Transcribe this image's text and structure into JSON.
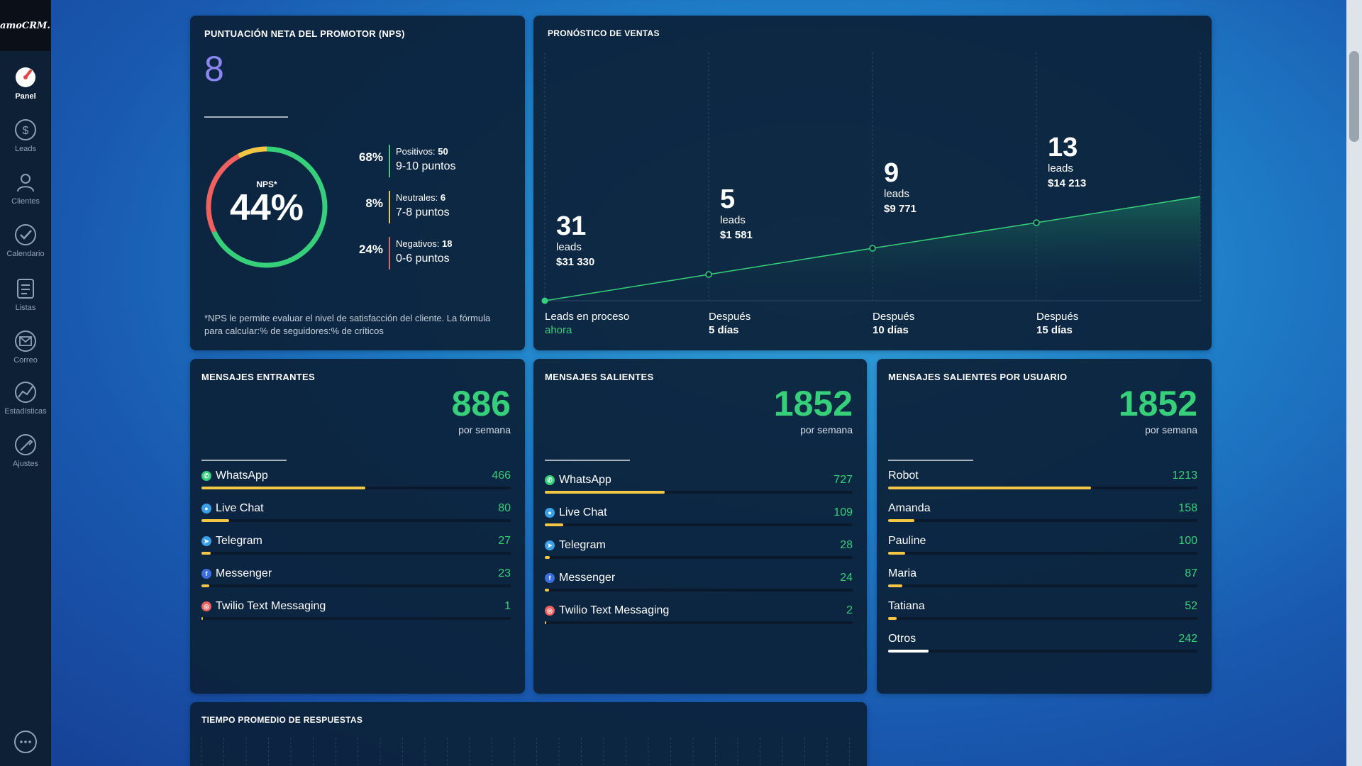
{
  "app": {
    "logo": "amoCRM."
  },
  "sidebar": {
    "items": [
      {
        "label": "Panel",
        "icon": "dashboard-icon",
        "active": true
      },
      {
        "label": "Leads",
        "icon": "dollar-icon"
      },
      {
        "label": "Clientes",
        "icon": "clients-icon"
      },
      {
        "label": "Calendario",
        "icon": "checkmark-icon"
      },
      {
        "label": "Listas",
        "icon": "list-icon"
      },
      {
        "label": "Correo",
        "icon": "mail-icon"
      },
      {
        "label": "Estadísticas",
        "icon": "stats-icon"
      },
      {
        "label": "Ajustes",
        "icon": "settings-icon"
      }
    ],
    "chat_icon": "chat-icon"
  },
  "nps": {
    "title": "PUNTUACIÓN NETA DEL PROMOTOR (NPS)",
    "value": "8",
    "gauge_label": "NPS*",
    "gauge_value": "44%",
    "gauge_fractions": {
      "positive": 0.68,
      "neutral": 0.08,
      "negative": 0.24
    },
    "rows": [
      {
        "pct": "68%",
        "label": "Positivos:",
        "count": "50",
        "range": "9-10 puntos",
        "color": "#37d07a"
      },
      {
        "pct": "8%",
        "label": "Neutrales:",
        "count": "6",
        "range": "7-8 puntos",
        "color": "#f3c744"
      },
      {
        "pct": "24%",
        "label": "Negativos:",
        "count": "18",
        "range": "0-6 puntos",
        "color": "#f0605e"
      }
    ],
    "footnote": "*NPS le permite evaluar el nivel de satisfacción del cliente. La fórmula para calcular:% de seguidores:% de críticos"
  },
  "forecast": {
    "title": "PRONÓSTICO DE VENTAS",
    "stages": [
      {
        "name": "Leads en proceso",
        "sub": "ahora",
        "leads": "31",
        "unit": "leads",
        "amount": "$31 330"
      },
      {
        "name": "Después",
        "sub": "5 días",
        "leads": "5",
        "unit": "leads",
        "amount": "$1 581"
      },
      {
        "name": "Después",
        "sub": "10 días",
        "leads": "9",
        "unit": "leads",
        "amount": "$9 771"
      },
      {
        "name": "Después",
        "sub": "15 días",
        "leads": "13",
        "unit": "leads",
        "amount": "$14 213"
      }
    ]
  },
  "incoming": {
    "title": "MENSAJES ENTRANTES",
    "total": "886",
    "per_week": "por semana",
    "rows": [
      {
        "name": "WhatsApp",
        "value": "466",
        "icon": "whatsapp-icon",
        "fill": 0.53,
        "color": "#f3c744"
      },
      {
        "name": "Live Chat",
        "value": "80",
        "icon": "livechat-icon",
        "fill": 0.09,
        "color": "#f3c744"
      },
      {
        "name": "Telegram",
        "value": "27",
        "icon": "telegram-icon",
        "fill": 0.03,
        "color": "#f3c744"
      },
      {
        "name": "Messenger",
        "value": "23",
        "icon": "messenger-icon",
        "fill": 0.026,
        "color": "#f3c744"
      },
      {
        "name": "Twilio Text Messaging",
        "value": "1",
        "icon": "twilio-icon",
        "fill": 0.003,
        "color": "#f3c744"
      }
    ]
  },
  "outgoing": {
    "title": "MENSAJES SALIENTES",
    "total": "1852",
    "per_week": "por semana",
    "rows": [
      {
        "name": "WhatsApp",
        "value": "727",
        "icon": "whatsapp-icon",
        "fill": 0.39,
        "color": "#f3c744"
      },
      {
        "name": "Live Chat",
        "value": "109",
        "icon": "livechat-icon",
        "fill": 0.06,
        "color": "#f3c744"
      },
      {
        "name": "Telegram",
        "value": "28",
        "icon": "telegram-icon",
        "fill": 0.015,
        "color": "#f3c744"
      },
      {
        "name": "Messenger",
        "value": "24",
        "icon": "messenger-icon",
        "fill": 0.013,
        "color": "#f3c744"
      },
      {
        "name": "Twilio Text Messaging",
        "value": "2",
        "icon": "twilio-icon",
        "fill": 0.002,
        "color": "#f3c744"
      }
    ]
  },
  "by_user": {
    "title": "MENSAJES SALIENTES POR USUARIO",
    "total": "1852",
    "per_week": "por semana",
    "rows": [
      {
        "name": "Robot",
        "value": "1213",
        "fill": 0.655,
        "color": "#f3c744"
      },
      {
        "name": "Amanda",
        "value": "158",
        "fill": 0.085,
        "color": "#f3c744"
      },
      {
        "name": "Pauline",
        "value": "100",
        "fill": 0.054,
        "color": "#f3c744"
      },
      {
        "name": "Maria",
        "value": "87",
        "fill": 0.047,
        "color": "#f3c744"
      },
      {
        "name": "Tatiana",
        "value": "52",
        "fill": 0.028,
        "color": "#f3c744"
      },
      {
        "name": "Otros",
        "value": "242",
        "fill": 0.13,
        "color": "#ffffff"
      }
    ]
  },
  "response_time": {
    "title": "TIEMPO PROMEDIO DE RESPUESTAS"
  }
}
